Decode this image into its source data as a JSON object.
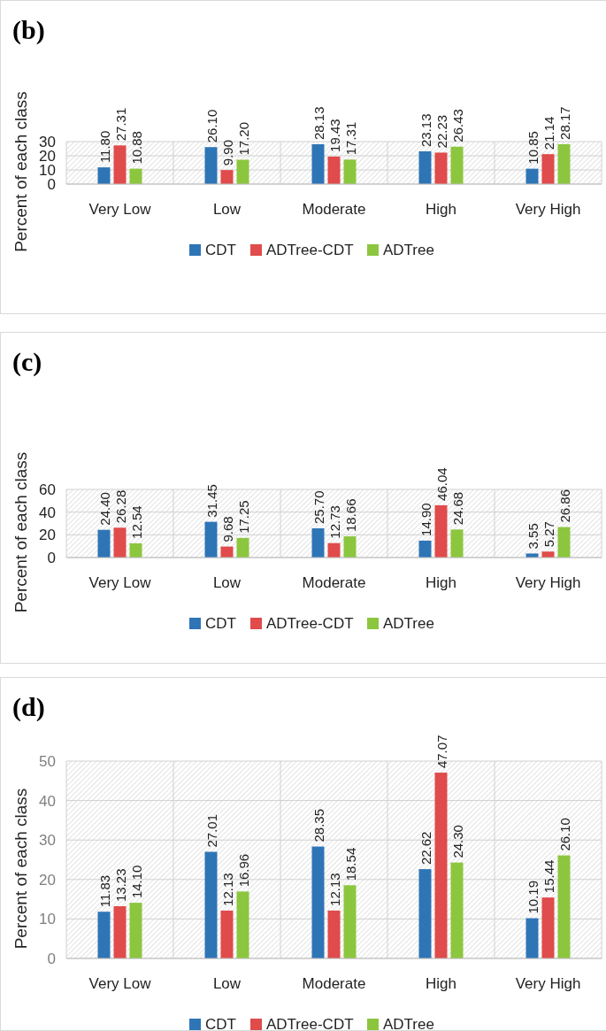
{
  "chart_data": [
    {
      "type": "bar",
      "title": "(b)",
      "ylabel": "Percent of each class",
      "categories": [
        "Very Low",
        "Low",
        "Moderate",
        "High",
        "Very High"
      ],
      "ylim": [
        0,
        30
      ],
      "yticks": [
        0,
        10,
        20,
        30
      ],
      "grid": true,
      "legend": "bottom",
      "series": [
        {
          "name": "CDT",
          "color": "#2e75b6",
          "values": [
            11.8,
            26.1,
            28.13,
            23.13,
            10.85
          ],
          "value_labels": [
            "11.80",
            "26.10",
            "28.13",
            "23.13",
            "10.85"
          ]
        },
        {
          "name": "ADTree-CDT",
          "color": "#e04b4b",
          "values": [
            27.31,
            9.9,
            19.43,
            22.23,
            21.14
          ],
          "value_labels": [
            "27.31",
            "9.90",
            "19.43",
            "22.23",
            "21.14"
          ]
        },
        {
          "name": "ADTree",
          "color": "#8cc63f",
          "values": [
            10.88,
            17.2,
            17.31,
            26.43,
            28.17
          ],
          "value_labels": [
            "10.88",
            "17.20",
            "17.31",
            "26.43",
            "28.17"
          ]
        }
      ]
    },
    {
      "type": "bar",
      "title": "(c)",
      "ylabel": "Percent of each class",
      "categories": [
        "Very Low",
        "Low",
        "Moderate",
        "High",
        "Very High"
      ],
      "ylim": [
        0,
        60
      ],
      "yticks": [
        0,
        20,
        40,
        60
      ],
      "grid": true,
      "legend": "bottom",
      "series": [
        {
          "name": "CDT",
          "color": "#2e75b6",
          "values": [
            24.4,
            31.45,
            25.7,
            14.9,
            3.55
          ],
          "value_labels": [
            "24.40",
            "31.45",
            "25.70",
            "14.90",
            "3.55"
          ]
        },
        {
          "name": "ADTree-CDT",
          "color": "#e04b4b",
          "values": [
            26.28,
            9.68,
            12.73,
            46.04,
            5.27
          ],
          "value_labels": [
            "26.28",
            "9.68",
            "12.73",
            "46.04",
            "5.27"
          ]
        },
        {
          "name": "ADTree",
          "color": "#8cc63f",
          "values": [
            12.54,
            17.25,
            18.66,
            24.68,
            26.86
          ],
          "value_labels": [
            "12.54",
            "17.25",
            "18.66",
            "24.68",
            "26.86"
          ]
        }
      ]
    },
    {
      "type": "bar",
      "title": "(d)",
      "ylabel": "Percent of each class",
      "categories": [
        "Very Low",
        "Low",
        "Moderate",
        "High",
        "Very High"
      ],
      "ylim": [
        0,
        50
      ],
      "yticks": [
        0,
        10,
        20,
        30,
        40,
        50
      ],
      "grid": true,
      "legend": "bottom",
      "series": [
        {
          "name": "CDT",
          "color": "#2e75b6",
          "values": [
            11.83,
            27.01,
            28.35,
            22.62,
            10.19
          ],
          "value_labels": [
            "11.83",
            "27.01",
            "28.35",
            "22.62",
            "10.19"
          ]
        },
        {
          "name": "ADTree-CDT",
          "color": "#e04b4b",
          "values": [
            13.23,
            12.13,
            12.13,
            47.07,
            15.44
          ],
          "value_labels": [
            "13.23",
            "12.13",
            "12.13",
            "47.07",
            "15.44"
          ]
        },
        {
          "name": "ADTree",
          "color": "#8cc63f",
          "values": [
            14.1,
            16.96,
            18.54,
            24.3,
            26.1
          ],
          "value_labels": [
            "14.10",
            "16.96",
            "18.54",
            "24.30",
            "26.10"
          ]
        }
      ]
    }
  ]
}
